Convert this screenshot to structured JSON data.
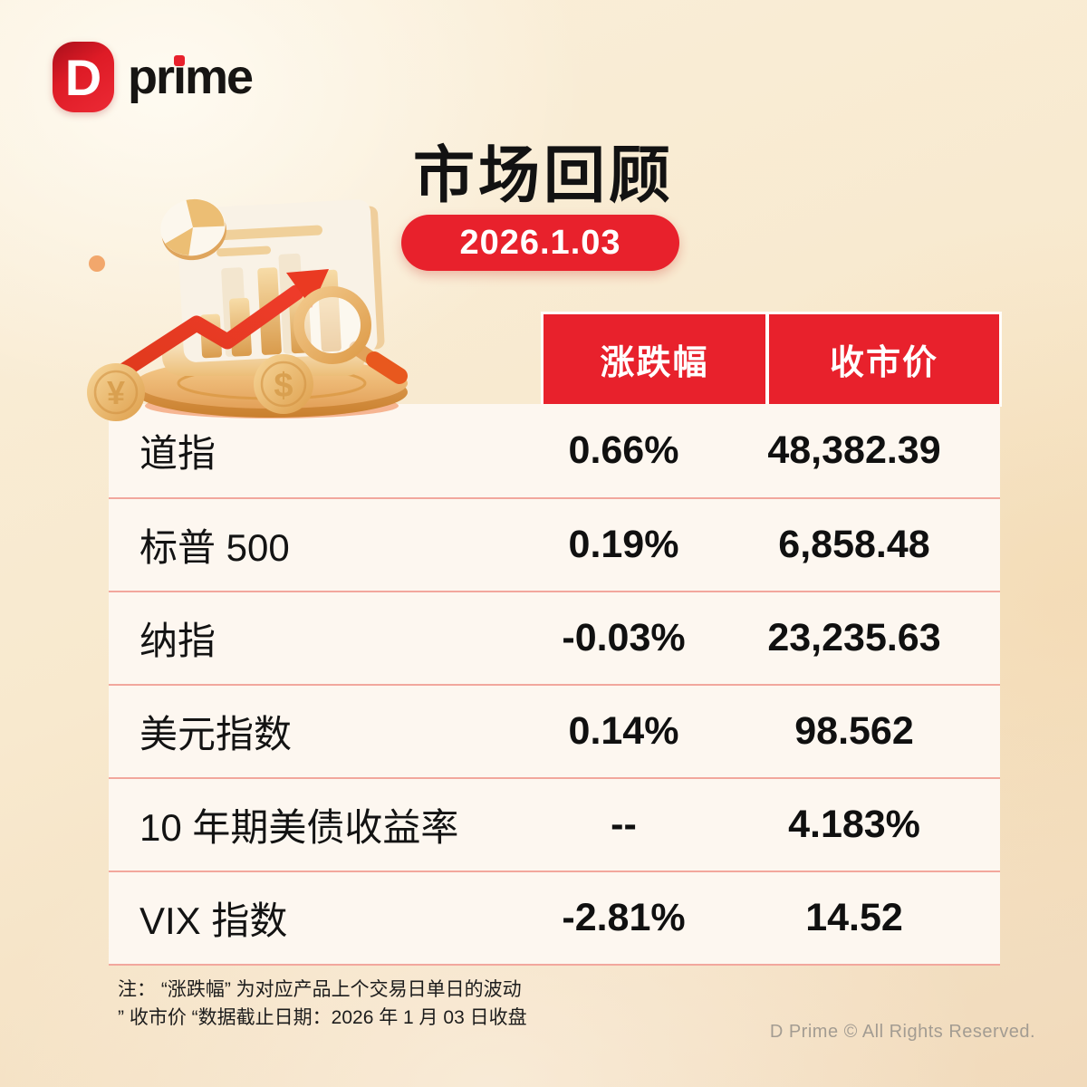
{
  "logo": {
    "mark_letter": "D",
    "text": "prime"
  },
  "header": {
    "title": "市场回顾",
    "date_badge": "2026.1.03"
  },
  "illustration": {
    "coin_yen": "¥",
    "coin_dollar": "$"
  },
  "chart_data": {
    "type": "table",
    "title": "市场回顾",
    "as_of_date": "2026.1.03",
    "columns": [
      "涨跌幅",
      "收市价"
    ],
    "rows": [
      {
        "label": "道指",
        "change": "0.66%",
        "close": "48,382.39"
      },
      {
        "label": "标普 500",
        "change": "0.19%",
        "close": "6,858.48"
      },
      {
        "label": "纳指",
        "change": "-0.03%",
        "close": "23,235.63"
      },
      {
        "label": "美元指数",
        "change": "0.14%",
        "close": "98.562"
      },
      {
        "label": "10 年期美债收益率",
        "change": "--",
        "close": "4.183%"
      },
      {
        "label": "VIX 指数",
        "change": "-2.81%",
        "close": "14.52"
      }
    ]
  },
  "notes": {
    "line1": "注： “涨跌幅” 为对应产品上个交易日单日的波动",
    "line2": "” 收市价 “数据截止日期：2026 年 1 月 03 日收盘"
  },
  "footer": {
    "copyright": "D Prime © All Rights Reserved."
  },
  "colors": {
    "accent_red": "#E8212C",
    "table_bg": "#FDF7F0",
    "divider": "#F2A79D",
    "background_cream": "#F8E9CE",
    "gold": "#E3A159"
  }
}
